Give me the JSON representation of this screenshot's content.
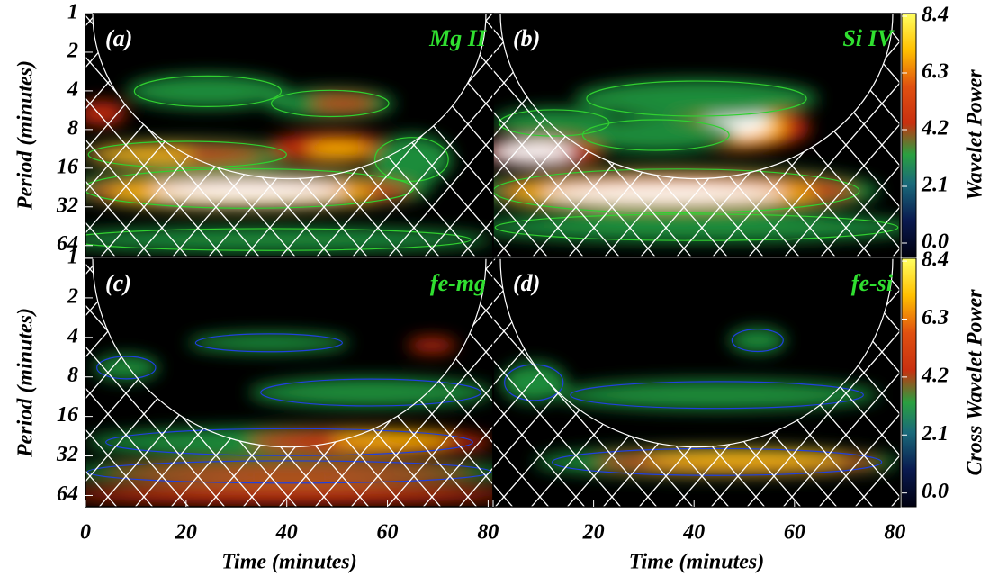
{
  "chart_data": [
    {
      "type": "wavelet",
      "label": "(a)",
      "name": "Mg II",
      "ylabel": "Period (minutes)",
      "xlim": [
        0,
        81
      ],
      "ylim": [
        1,
        78
      ],
      "ylog": true,
      "yticks": [
        1,
        2,
        4,
        8,
        16,
        32,
        64
      ]
    },
    {
      "type": "wavelet",
      "label": "(b)",
      "name": "Si IV",
      "xlim": [
        0,
        81
      ],
      "ylim": [
        1,
        78
      ],
      "ylog": true
    },
    {
      "type": "wavelet",
      "label": "(c)",
      "name": "fe-mg",
      "ylabel": "Period (minutes)",
      "xlabel": "Time (minutes)",
      "xlim": [
        0,
        81
      ],
      "ylim": [
        1,
        78
      ],
      "ylog": true,
      "yticks": [
        1,
        2,
        4,
        8,
        16,
        32,
        64
      ],
      "xticks": [
        0,
        20,
        40,
        60,
        80
      ]
    },
    {
      "type": "wavelet",
      "label": "(d)",
      "name": "fe-si",
      "xlabel": "Time (minutes)",
      "xlim": [
        0,
        81
      ],
      "ylim": [
        1,
        78
      ],
      "ylog": true,
      "xticks": [
        0,
        20,
        40,
        60,
        80
      ]
    }
  ],
  "colorbars": [
    {
      "label": "Wavelet Power",
      "lim": [
        -0.5,
        8.5
      ],
      "ticks": [
        {
          "value": 0,
          "label": "0.0"
        },
        {
          "value": 2.1,
          "label": "2.1"
        },
        {
          "value": 4.2,
          "label": "4.2"
        },
        {
          "value": 6.3,
          "label": "6.3"
        },
        {
          "value": 8.4,
          "label": "8.4"
        }
      ]
    },
    {
      "label": "Cross Wavelet Power",
      "lim": [
        -0.5,
        8.5
      ],
      "ticks": [
        {
          "value": 0,
          "label": "0.0"
        },
        {
          "value": 2.1,
          "label": "2.1"
        },
        {
          "value": 4.2,
          "label": "4.2"
        },
        {
          "value": 6.3,
          "label": "6.3"
        },
        {
          "value": 8.4,
          "label": "8.4"
        }
      ]
    }
  ]
}
